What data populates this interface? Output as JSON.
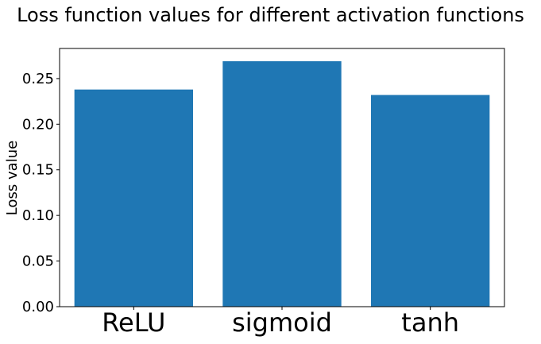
{
  "chart_data": {
    "type": "bar",
    "title": "Loss function values for different activation functions",
    "xlabel": "",
    "ylabel": "Loss value",
    "categories": [
      "ReLU",
      "sigmoid",
      "tanh"
    ],
    "values": [
      0.238,
      0.269,
      0.232
    ],
    "ylim": [
      0,
      0.283
    ],
    "yticks": [
      0.0,
      0.05,
      0.1,
      0.15,
      0.2,
      0.25
    ],
    "ytick_labels": [
      "0.00",
      "0.05",
      "0.10",
      "0.15",
      "0.20",
      "0.25"
    ],
    "grid": false,
    "legend": "none",
    "bar_color": "#1f77b4"
  }
}
